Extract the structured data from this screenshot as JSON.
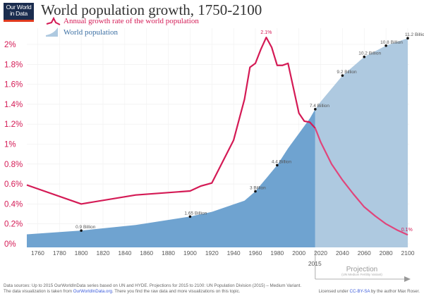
{
  "logo": {
    "line1": "Our World",
    "line2": "in Data"
  },
  "title": "World population growth, 1750-2100",
  "legend": [
    {
      "label": "Annual growth rate of the world population",
      "color": "#d41a55"
    },
    {
      "label": "World population",
      "color": "#4a86bf"
    }
  ],
  "colors": {
    "rate": "#d41a55",
    "rate_projection": "#e0457b",
    "population": "#6fa3d0",
    "population_projection": "#aec9e0",
    "logo_bg": "#1a2c4e",
    "logo_bar": "#e03a1e"
  },
  "chart_data": {
    "type": "line+area",
    "x_ticks": [
      1760,
      1780,
      1800,
      1820,
      1840,
      1860,
      1880,
      1900,
      1920,
      1940,
      1960,
      1980,
      2000,
      2020,
      2040,
      2060,
      2080,
      2100
    ],
    "y_ticks": [
      "0%",
      "0.2%",
      "0.4%",
      "0.6%",
      "0.8%",
      "1%",
      "1.2%",
      "1.4%",
      "1.6%",
      "1.8%",
      "2%"
    ],
    "xlim": [
      1750,
      2100
    ],
    "ylim_percent": [
      0,
      2.2
    ],
    "grid": true,
    "projection_start": 2015,
    "projection_marker": {
      "year_label": "2015",
      "label": "Projection",
      "sublabel": "(UN Medium Fertility Variant)"
    },
    "growth_rate": {
      "name": "Annual growth rate of the world population",
      "unit": "%",
      "x": [
        1750,
        1800,
        1850,
        1900,
        1910,
        1920,
        1940,
        1950,
        1955,
        1960,
        1965,
        1970,
        1975,
        1980,
        1985,
        1990,
        2000,
        2005,
        2010,
        2015,
        2020,
        2030,
        2040,
        2050,
        2060,
        2070,
        2080,
        2090,
        2100
      ],
      "y": [
        0.59,
        0.4,
        0.49,
        0.53,
        0.58,
        0.61,
        1.04,
        1.45,
        1.77,
        1.81,
        1.95,
        2.07,
        1.97,
        1.79,
        1.79,
        1.81,
        1.31,
        1.23,
        1.22,
        1.16,
        1.02,
        0.8,
        0.64,
        0.5,
        0.37,
        0.28,
        0.2,
        0.14,
        0.09
      ],
      "peak_label": "2.1%",
      "end_label": "0.1%"
    },
    "population": {
      "name": "World population",
      "unit": "billion",
      "x": [
        1750,
        1800,
        1850,
        1900,
        1920,
        1940,
        1950,
        1960,
        1970,
        1980,
        1990,
        2000,
        2010,
        2015,
        2020,
        2030,
        2040,
        2050,
        2060,
        2070,
        2080,
        2090,
        2100
      ],
      "y": [
        0.7,
        0.9,
        1.2,
        1.65,
        1.9,
        2.3,
        2.5,
        3.0,
        3.7,
        4.4,
        5.3,
        6.1,
        6.9,
        7.4,
        7.8,
        8.5,
        9.2,
        9.7,
        10.2,
        10.5,
        10.8,
        11.0,
        11.2
      ],
      "labels": [
        {
          "x": 1800,
          "y": 0.9,
          "text": "0.9 Billion"
        },
        {
          "x": 1900,
          "y": 1.65,
          "text": "1.65 Billion"
        },
        {
          "x": 1960,
          "y": 3.0,
          "text": "3 Billion"
        },
        {
          "x": 1980,
          "y": 4.4,
          "text": "4.4 Billion"
        },
        {
          "x": 2015,
          "y": 7.4,
          "text": "7.4 Billion"
        },
        {
          "x": 2040,
          "y": 9.2,
          "text": "9.2 Billion"
        },
        {
          "x": 2060,
          "y": 10.2,
          "text": "10.2 Billion"
        },
        {
          "x": 2080,
          "y": 10.8,
          "text": "10.8 Billion"
        },
        {
          "x": 2100,
          "y": 11.2,
          "text": "11.2 Billion"
        }
      ]
    }
  },
  "footer": {
    "sources": "Data sources:  Up to 2015 OurWorldInData series based on UN and HYDE. Projections for 2015 to 2100: UN Population Division (2015) – Medium Variant.",
    "line2_pre": "The data visualization is taken from ",
    "line2_link": "OurWorldInData.org",
    "line2_post": ". There you find the raw data and more visualizations on this topic.",
    "license_pre": "Licensed under ",
    "license_link": "CC-BY-SA",
    "license_post": " by the author Max Roser."
  }
}
